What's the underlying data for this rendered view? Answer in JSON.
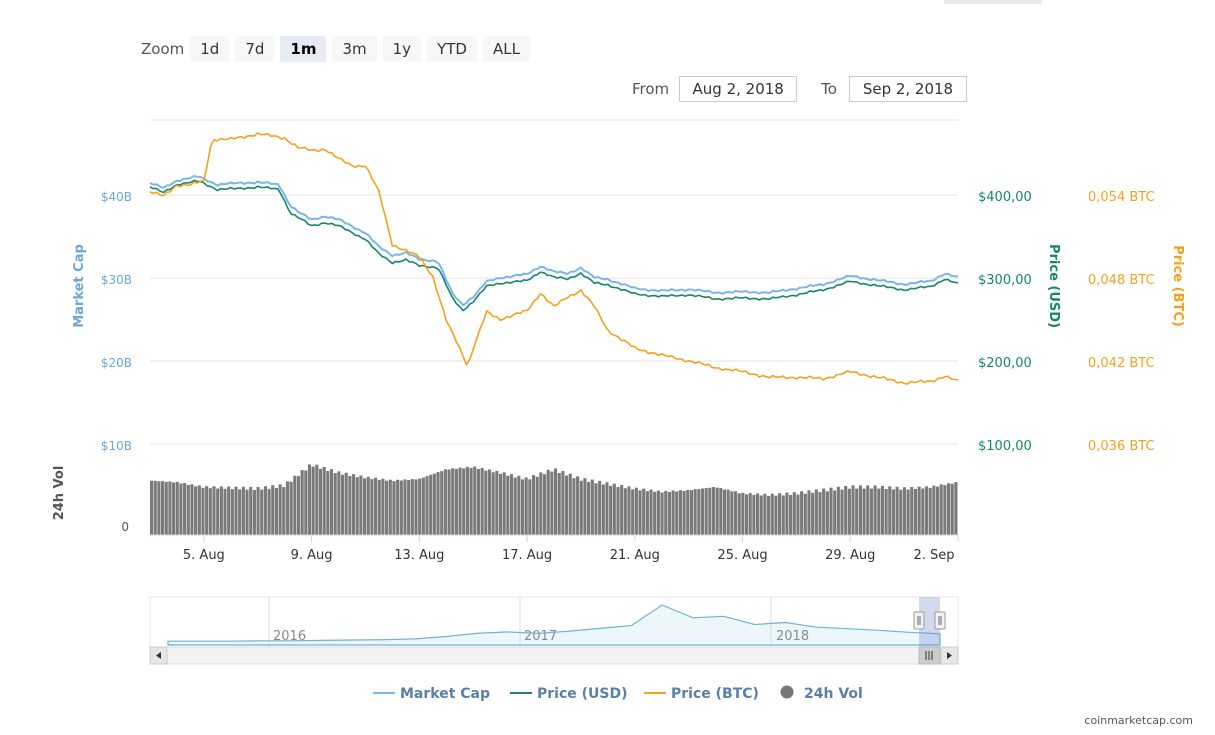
{
  "zoom": {
    "label": "Zoom",
    "buttons": [
      "1d",
      "7d",
      "1m",
      "3m",
      "1y",
      "YTD",
      "ALL"
    ],
    "active": "1m"
  },
  "range": {
    "from_label": "From",
    "from_value": "Aug 2, 2018",
    "to_label": "To",
    "to_value": "Sep 2, 2018"
  },
  "legend": {
    "market_cap": "Market Cap",
    "price_usd": "Price (USD)",
    "price_btc": "Price (BTC)",
    "volume": "24h Vol"
  },
  "footer": "coinmarketcap.com",
  "colors": {
    "market_cap": "#7cb5ec",
    "market_cap_label": "#6aa8d8",
    "price_usd": "#15876a",
    "price_btc": "#f5a11c",
    "volume": "#7a7a7a",
    "navigator": "#6fb2db"
  },
  "chart_data": {
    "type": "line",
    "x_range": [
      "Aug 3, 2018",
      "Sep 2, 2018"
    ],
    "x_tick_labels": [
      "5. Aug",
      "9. Aug",
      "13. Aug",
      "17. Aug",
      "21. Aug",
      "25. Aug",
      "29. Aug",
      "2. Sep"
    ],
    "x_tick_days": [
      5,
      9,
      13,
      17,
      21,
      25,
      29,
      33
    ],
    "axes": {
      "market_cap": {
        "label": "Market Cap",
        "ticks": [
          "$10B",
          "$20B",
          "$30B",
          "$40B"
        ],
        "tick_values": [
          10,
          20,
          30,
          40
        ],
        "range": [
          10,
          50
        ]
      },
      "price_usd": {
        "label": "Price (USD)",
        "ticks": [
          "$100,00",
          "$200,00",
          "$300,00",
          "$400,00"
        ],
        "tick_values": [
          100,
          200,
          300,
          400
        ],
        "range": [
          100,
          500
        ]
      },
      "price_btc": {
        "label": "Price (BTC)",
        "ticks": [
          "0,036 BTC",
          "0,042 BTC",
          "0,048 BTC",
          "0,054 BTC"
        ],
        "tick_values": [
          0.036,
          0.042,
          0.048,
          0.054
        ],
        "range": [
          0.036,
          0.06
        ]
      },
      "volume": {
        "label": "24h Vol",
        "ticks": [
          "0"
        ],
        "tick_values": [
          0
        ]
      }
    },
    "series": [
      {
        "name": "Market Cap",
        "unit": "B USD",
        "x": [
          3,
          3.5,
          4,
          4.8,
          5.5,
          6.3,
          7,
          7.8,
          8.2,
          8.6,
          9,
          9.5,
          10,
          11,
          11.5,
          12,
          12.5,
          13,
          13.7,
          14.2,
          14.6,
          15,
          15.5,
          16,
          17,
          17.5,
          18,
          18.5,
          19,
          19.5,
          20,
          21,
          22,
          23,
          24,
          25,
          26,
          27,
          28,
          29,
          30,
          31,
          32,
          32.5,
          33
        ],
        "values": [
          41.2,
          40.6,
          41.5,
          42.0,
          41.0,
          41.2,
          41.3,
          41.0,
          38.5,
          37.5,
          36.8,
          37.2,
          36.8,
          35.2,
          33.5,
          32.5,
          32.8,
          32.0,
          31.8,
          28.0,
          26.5,
          27.5,
          29.3,
          29.8,
          30.2,
          31.2,
          30.5,
          30.3,
          31.0,
          29.8,
          29.6,
          28.5,
          28.2,
          28.4,
          28.0,
          28.1,
          28.0,
          28.5,
          29.0,
          30.0,
          29.5,
          29.0,
          29.4,
          30.3,
          29.8
        ]
      },
      {
        "name": "Price (USD)",
        "unit": "USD",
        "x": [
          3,
          3.5,
          4,
          4.8,
          5.5,
          6.3,
          7,
          7.8,
          8.2,
          8.6,
          9,
          9.5,
          10,
          11,
          11.5,
          12,
          12.5,
          13,
          13.7,
          14.2,
          14.6,
          15,
          15.5,
          16,
          17,
          17.5,
          18,
          18.5,
          19,
          19.5,
          20,
          21,
          22,
          23,
          24,
          25,
          26,
          27,
          28,
          29,
          30,
          31,
          32,
          32.5,
          33
        ],
        "values": [
          411,
          404,
          414,
          418,
          408,
          409,
          411,
          408,
          380,
          372,
          364,
          368,
          364,
          348,
          330,
          320,
          323,
          316,
          314,
          278,
          262,
          273,
          291,
          295,
          298,
          309,
          302,
          300,
          307,
          295,
          293,
          282,
          279,
          281,
          276,
          277,
          276,
          281,
          287,
          297,
          292,
          287,
          291,
          300,
          294
        ]
      },
      {
        "name": "Price (BTC)",
        "unit": "BTC",
        "x": [
          3,
          3.5,
          4,
          4.5,
          5,
          5.3,
          6,
          7,
          8,
          8.5,
          9,
          9.5,
          10,
          10.5,
          11,
          11.5,
          12,
          13,
          13.5,
          14,
          14.5,
          14.8,
          15,
          15.5,
          16,
          17,
          17.5,
          18,
          18.5,
          19,
          19.5,
          20,
          21,
          22,
          23,
          24,
          25,
          26,
          27,
          28,
          29,
          30,
          31,
          32,
          32.5,
          33
        ],
        "values": [
          0.0548,
          0.0545,
          0.0553,
          0.0553,
          0.0556,
          0.0586,
          0.0586,
          0.059,
          0.0587,
          0.058,
          0.0578,
          0.0579,
          0.0572,
          0.0567,
          0.0567,
          0.0548,
          0.051,
          0.0501,
          0.0487,
          0.0455,
          0.0435,
          0.0422,
          0.0435,
          0.0461,
          0.0456,
          0.0462,
          0.0475,
          0.0465,
          0.0472,
          0.0477,
          0.0465,
          0.0448,
          0.0435,
          0.043,
          0.0426,
          0.0421,
          0.0418,
          0.0414,
          0.0414,
          0.0413,
          0.0418,
          0.0414,
          0.041,
          0.0411,
          0.0415,
          0.0411
        ]
      },
      {
        "name": "24h Vol",
        "unit": "relative",
        "x": [
          3,
          4,
          5,
          6,
          7,
          8,
          9,
          10,
          11,
          12,
          13,
          14,
          15,
          16,
          17,
          18,
          19,
          20,
          21,
          22,
          23,
          24,
          25,
          26,
          27,
          28,
          29,
          30,
          31,
          32,
          33
        ],
        "values": [
          0.68,
          0.66,
          0.6,
          0.59,
          0.58,
          0.62,
          0.88,
          0.78,
          0.72,
          0.68,
          0.7,
          0.82,
          0.85,
          0.78,
          0.7,
          0.82,
          0.7,
          0.64,
          0.58,
          0.54,
          0.56,
          0.6,
          0.52,
          0.5,
          0.52,
          0.56,
          0.6,
          0.6,
          0.58,
          0.6,
          0.66
        ]
      }
    ],
    "navigator": {
      "year_labels": [
        "2016",
        "2017",
        "2018"
      ],
      "values": [
        0.02,
        0.02,
        0.02,
        0.03,
        0.03,
        0.04,
        0.05,
        0.06,
        0.08,
        0.14,
        0.22,
        0.26,
        0.22,
        0.28,
        0.35,
        0.42,
        0.95,
        0.62,
        0.66,
        0.45,
        0.5,
        0.38,
        0.34,
        0.3,
        0.25,
        0.21
      ]
    }
  }
}
